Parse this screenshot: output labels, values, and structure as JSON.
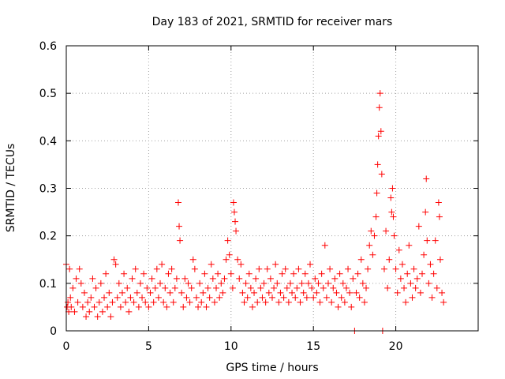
{
  "chart_data": {
    "type": "scatter",
    "title": "Day 183 of 2021, SRMTID for receiver mars",
    "xlabel": "GPS time / hours",
    "ylabel": "SRMTID / TECUs",
    "xlim": [
      0,
      25
    ],
    "ylim": [
      0,
      0.6
    ],
    "xticks": [
      0,
      5,
      10,
      15,
      20
    ],
    "xtick_labels": [
      "0",
      "5",
      "10",
      "15",
      "20"
    ],
    "yticks": [
      0,
      0.1,
      0.2,
      0.3,
      0.4,
      0.5,
      0.6
    ],
    "ytick_labels": [
      "0",
      "0.1",
      "0.2",
      "0.3",
      "0.4",
      "0.5",
      "0.6"
    ],
    "grid": true,
    "marker": "+",
    "color": "#ff0000",
    "series": [
      {
        "name": "SRMTID",
        "points": [
          [
            0.0,
            0.14
          ],
          [
            0.05,
            0.05
          ],
          [
            0.1,
            0.06
          ],
          [
            0.15,
            0.04
          ],
          [
            0.2,
            0.13
          ],
          [
            0.25,
            0.07
          ],
          [
            0.3,
            0.05
          ],
          [
            0.4,
            0.09
          ],
          [
            0.5,
            0.04
          ],
          [
            0.6,
            0.11
          ],
          [
            0.7,
            0.06
          ],
          [
            0.8,
            0.13
          ],
          [
            0.9,
            0.1
          ],
          [
            1.0,
            0.05
          ],
          [
            1.1,
            0.08
          ],
          [
            1.2,
            0.03
          ],
          [
            1.3,
            0.06
          ],
          [
            1.4,
            0.04
          ],
          [
            1.5,
            0.07
          ],
          [
            1.6,
            0.11
          ],
          [
            1.7,
            0.05
          ],
          [
            1.8,
            0.09
          ],
          [
            1.9,
            0.03
          ],
          [
            2.0,
            0.06
          ],
          [
            2.1,
            0.1
          ],
          [
            2.2,
            0.04
          ],
          [
            2.3,
            0.07
          ],
          [
            2.4,
            0.12
          ],
          [
            2.5,
            0.05
          ],
          [
            2.6,
            0.08
          ],
          [
            2.7,
            0.03
          ],
          [
            2.8,
            0.06
          ],
          [
            2.9,
            0.15
          ],
          [
            3.0,
            0.14
          ],
          [
            3.1,
            0.07
          ],
          [
            3.2,
            0.1
          ],
          [
            3.3,
            0.05
          ],
          [
            3.4,
            0.08
          ],
          [
            3.5,
            0.12
          ],
          [
            3.6,
            0.06
          ],
          [
            3.7,
            0.09
          ],
          [
            3.8,
            0.04
          ],
          [
            3.9,
            0.07
          ],
          [
            4.0,
            0.11
          ],
          [
            4.1,
            0.06
          ],
          [
            4.2,
            0.13
          ],
          [
            4.3,
            0.08
          ],
          [
            4.4,
            0.05
          ],
          [
            4.5,
            0.1
          ],
          [
            4.6,
            0.07
          ],
          [
            4.7,
            0.12
          ],
          [
            4.8,
            0.06
          ],
          [
            4.9,
            0.09
          ],
          [
            5.0,
            0.05
          ],
          [
            5.1,
            0.08
          ],
          [
            5.2,
            0.11
          ],
          [
            5.3,
            0.06
          ],
          [
            5.4,
            0.09
          ],
          [
            5.5,
            0.13
          ],
          [
            5.6,
            0.07
          ],
          [
            5.7,
            0.1
          ],
          [
            5.8,
            0.14
          ],
          [
            5.9,
            0.06
          ],
          [
            6.0,
            0.09
          ],
          [
            6.1,
            0.05
          ],
          [
            6.2,
            0.12
          ],
          [
            6.3,
            0.08
          ],
          [
            6.4,
            0.13
          ],
          [
            6.5,
            0.06
          ],
          [
            6.6,
            0.09
          ],
          [
            6.7,
            0.11
          ],
          [
            6.8,
            0.27
          ],
          [
            6.85,
            0.22
          ],
          [
            6.9,
            0.19
          ],
          [
            7.0,
            0.08
          ],
          [
            7.1,
            0.05
          ],
          [
            7.2,
            0.11
          ],
          [
            7.3,
            0.07
          ],
          [
            7.4,
            0.1
          ],
          [
            7.5,
            0.06
          ],
          [
            7.6,
            0.09
          ],
          [
            7.7,
            0.15
          ],
          [
            7.8,
            0.13
          ],
          [
            7.9,
            0.07
          ],
          [
            8.0,
            0.05
          ],
          [
            8.1,
            0.1
          ],
          [
            8.2,
            0.06
          ],
          [
            8.3,
            0.08
          ],
          [
            8.4,
            0.12
          ],
          [
            8.5,
            0.05
          ],
          [
            8.6,
            0.09
          ],
          [
            8.7,
            0.07
          ],
          [
            8.8,
            0.14
          ],
          [
            8.9,
            0.11
          ],
          [
            9.0,
            0.06
          ],
          [
            9.1,
            0.09
          ],
          [
            9.2,
            0.12
          ],
          [
            9.3,
            0.07
          ],
          [
            9.4,
            0.1
          ],
          [
            9.5,
            0.08
          ],
          [
            9.6,
            0.11
          ],
          [
            9.7,
            0.15
          ],
          [
            9.8,
            0.19
          ],
          [
            9.9,
            0.16
          ],
          [
            10.0,
            0.12
          ],
          [
            10.1,
            0.09
          ],
          [
            10.15,
            0.27
          ],
          [
            10.2,
            0.25
          ],
          [
            10.25,
            0.23
          ],
          [
            10.3,
            0.21
          ],
          [
            10.4,
            0.15
          ],
          [
            10.5,
            0.11
          ],
          [
            10.6,
            0.14
          ],
          [
            10.7,
            0.08
          ],
          [
            10.8,
            0.06
          ],
          [
            10.9,
            0.1
          ],
          [
            11.0,
            0.07
          ],
          [
            11.1,
            0.12
          ],
          [
            11.2,
            0.09
          ],
          [
            11.3,
            0.05
          ],
          [
            11.4,
            0.08
          ],
          [
            11.5,
            0.11
          ],
          [
            11.6,
            0.06
          ],
          [
            11.7,
            0.13
          ],
          [
            11.8,
            0.09
          ],
          [
            11.9,
            0.07
          ],
          [
            12.0,
            0.1
          ],
          [
            12.1,
            0.06
          ],
          [
            12.2,
            0.13
          ],
          [
            12.3,
            0.08
          ],
          [
            12.4,
            0.11
          ],
          [
            12.5,
            0.07
          ],
          [
            12.6,
            0.09
          ],
          [
            12.7,
            0.14
          ],
          [
            12.8,
            0.1
          ],
          [
            12.9,
            0.06
          ],
          [
            13.0,
            0.08
          ],
          [
            13.1,
            0.12
          ],
          [
            13.2,
            0.07
          ],
          [
            13.3,
            0.13
          ],
          [
            13.4,
            0.09
          ],
          [
            13.5,
            0.06
          ],
          [
            13.6,
            0.1
          ],
          [
            13.7,
            0.08
          ],
          [
            13.8,
            0.12
          ],
          [
            13.9,
            0.07
          ],
          [
            14.0,
            0.09
          ],
          [
            14.1,
            0.13
          ],
          [
            14.2,
            0.06
          ],
          [
            14.3,
            0.1
          ],
          [
            14.4,
            0.08
          ],
          [
            14.5,
            0.12
          ],
          [
            14.6,
            0.07
          ],
          [
            14.7,
            0.1
          ],
          [
            14.8,
            0.14
          ],
          [
            14.9,
            0.09
          ],
          [
            15.0,
            0.07
          ],
          [
            15.1,
            0.11
          ],
          [
            15.2,
            0.08
          ],
          [
            15.3,
            0.1
          ],
          [
            15.4,
            0.06
          ],
          [
            15.5,
            0.12
          ],
          [
            15.6,
            0.09
          ],
          [
            15.7,
            0.18
          ],
          [
            15.8,
            0.07
          ],
          [
            15.9,
            0.1
          ],
          [
            16.0,
            0.13
          ],
          [
            16.1,
            0.06
          ],
          [
            16.2,
            0.09
          ],
          [
            16.3,
            0.11
          ],
          [
            16.4,
            0.08
          ],
          [
            16.5,
            0.05
          ],
          [
            16.6,
            0.12
          ],
          [
            16.7,
            0.07
          ],
          [
            16.8,
            0.1
          ],
          [
            16.9,
            0.06
          ],
          [
            17.0,
            0.09
          ],
          [
            17.1,
            0.13
          ],
          [
            17.2,
            0.08
          ],
          [
            17.3,
            0.05
          ],
          [
            17.4,
            0.11
          ],
          [
            17.5,
            0.0
          ],
          [
            17.6,
            0.08
          ],
          [
            17.7,
            0.12
          ],
          [
            17.8,
            0.07
          ],
          [
            17.9,
            0.15
          ],
          [
            18.0,
            0.1
          ],
          [
            18.1,
            0.06
          ],
          [
            18.2,
            0.09
          ],
          [
            18.3,
            0.13
          ],
          [
            18.4,
            0.18
          ],
          [
            18.5,
            0.21
          ],
          [
            18.6,
            0.16
          ],
          [
            18.7,
            0.2
          ],
          [
            18.8,
            0.24
          ],
          [
            18.85,
            0.29
          ],
          [
            18.9,
            0.35
          ],
          [
            18.95,
            0.41
          ],
          [
            19.0,
            0.47
          ],
          [
            19.05,
            0.5
          ],
          [
            19.1,
            0.42
          ],
          [
            19.15,
            0.33
          ],
          [
            19.2,
            0.0
          ],
          [
            19.3,
            0.13
          ],
          [
            19.4,
            0.21
          ],
          [
            19.5,
            0.09
          ],
          [
            19.6,
            0.15
          ],
          [
            19.7,
            0.28
          ],
          [
            19.75,
            0.25
          ],
          [
            19.8,
            0.3
          ],
          [
            19.85,
            0.24
          ],
          [
            19.9,
            0.2
          ],
          [
            20.0,
            0.13
          ],
          [
            20.1,
            0.08
          ],
          [
            20.2,
            0.17
          ],
          [
            20.3,
            0.11
          ],
          [
            20.4,
            0.14
          ],
          [
            20.5,
            0.09
          ],
          [
            20.6,
            0.06
          ],
          [
            20.7,
            0.12
          ],
          [
            20.8,
            0.18
          ],
          [
            20.9,
            0.1
          ],
          [
            21.0,
            0.07
          ],
          [
            21.1,
            0.13
          ],
          [
            21.2,
            0.09
          ],
          [
            21.3,
            0.11
          ],
          [
            21.4,
            0.22
          ],
          [
            21.5,
            0.08
          ],
          [
            21.6,
            0.12
          ],
          [
            21.7,
            0.16
          ],
          [
            21.8,
            0.25
          ],
          [
            21.85,
            0.32
          ],
          [
            21.9,
            0.19
          ],
          [
            22.0,
            0.1
          ],
          [
            22.1,
            0.14
          ],
          [
            22.2,
            0.07
          ],
          [
            22.3,
            0.12
          ],
          [
            22.4,
            0.19
          ],
          [
            22.5,
            0.09
          ],
          [
            22.6,
            0.27
          ],
          [
            22.65,
            0.24
          ],
          [
            22.7,
            0.15
          ],
          [
            22.8,
            0.08
          ],
          [
            22.9,
            0.06
          ]
        ]
      }
    ]
  }
}
